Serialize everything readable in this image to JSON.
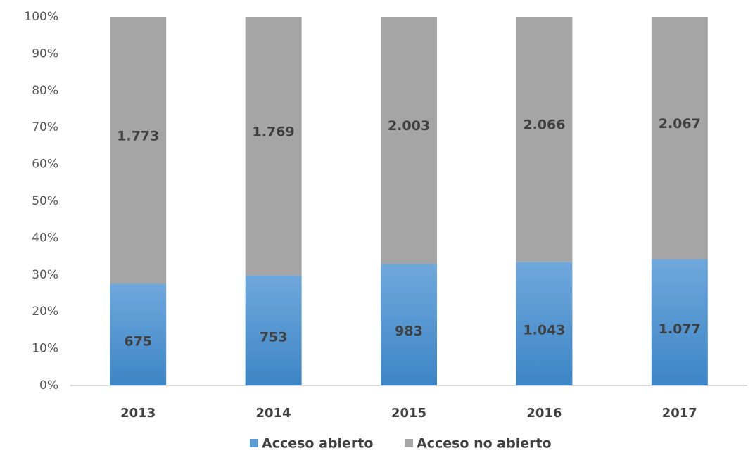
{
  "chart_data": {
    "type": "bar",
    "stacking": "percent",
    "categories": [
      "2013",
      "2014",
      "2015",
      "2016",
      "2017"
    ],
    "series": [
      {
        "name": "Acceso abierto",
        "color": "#5b9bd5",
        "values": [
          675,
          753,
          983,
          1043,
          1077
        ],
        "value_labels": [
          "675",
          "753",
          "983",
          "1.043",
          "1.077"
        ]
      },
      {
        "name": "Acceso no abierto",
        "color": "#a5a5a5",
        "values": [
          1773,
          1769,
          2003,
          2066,
          2067
        ],
        "value_labels": [
          "1.773",
          "1.769",
          "2.003",
          "2.066",
          "2.067"
        ]
      }
    ],
    "ylim": [
      0,
      100
    ],
    "yticks": [
      {
        "value": 0,
        "label": "0%"
      },
      {
        "value": 10,
        "label": "10%"
      },
      {
        "value": 20,
        "label": "20%"
      },
      {
        "value": 30,
        "label": "30%"
      },
      {
        "value": 40,
        "label": "40%"
      },
      {
        "value": 50,
        "label": "50%"
      },
      {
        "value": 60,
        "label": "60%"
      },
      {
        "value": 70,
        "label": "70%"
      },
      {
        "value": 80,
        "label": "80%"
      },
      {
        "value": 90,
        "label": "90%"
      },
      {
        "value": 100,
        "label": "100%"
      }
    ],
    "legend": "bottom"
  }
}
